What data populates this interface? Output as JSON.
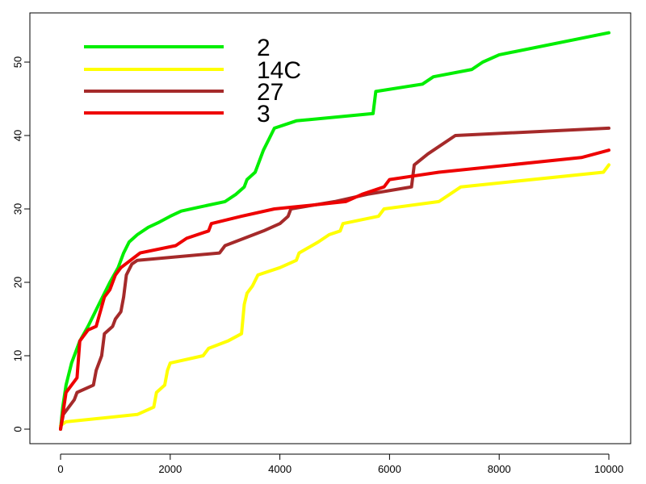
{
  "chart_data": {
    "type": "line",
    "title": "",
    "xlabel": "",
    "ylabel": "",
    "xlim": [
      0,
      10000
    ],
    "ylim": [
      0,
      54
    ],
    "x_ticks": [
      0,
      2000,
      4000,
      6000,
      8000,
      10000
    ],
    "y_ticks": [
      0,
      10,
      20,
      30,
      40,
      50
    ],
    "x_tick_labels": [
      "0",
      "2000",
      "4000",
      "6000",
      "8000",
      "10000"
    ],
    "y_tick_labels": [
      "0",
      "10",
      "20",
      "30",
      "40",
      "50"
    ],
    "grid": false,
    "legend_position": "top-left",
    "series": [
      {
        "name": "2",
        "color": "#00ee00",
        "points": [
          [
            0,
            0
          ],
          [
            40,
            3
          ],
          [
            100,
            6
          ],
          [
            200,
            9
          ],
          [
            350,
            12
          ],
          [
            500,
            14
          ],
          [
            700,
            17
          ],
          [
            900,
            20
          ],
          [
            1050,
            22
          ],
          [
            1150,
            24
          ],
          [
            1250,
            25.5
          ],
          [
            1400,
            26.5
          ],
          [
            1600,
            27.5
          ],
          [
            1800,
            28.2
          ],
          [
            2000,
            29
          ],
          [
            2200,
            29.7
          ],
          [
            2500,
            30.2
          ],
          [
            3000,
            31
          ],
          [
            3200,
            32
          ],
          [
            3350,
            33
          ],
          [
            3400,
            34
          ],
          [
            3550,
            35
          ],
          [
            3600,
            36
          ],
          [
            3700,
            38
          ],
          [
            3800,
            39.5
          ],
          [
            3900,
            41
          ],
          [
            4300,
            42
          ],
          [
            5700,
            43
          ],
          [
            5750,
            46
          ],
          [
            6600,
            47
          ],
          [
            6800,
            48
          ],
          [
            7500,
            49
          ],
          [
            7700,
            50
          ],
          [
            8000,
            51
          ],
          [
            10000,
            54
          ]
        ]
      },
      {
        "name": "14C",
        "color": "#ffff00",
        "points": [
          [
            0,
            0.5
          ],
          [
            100,
            1
          ],
          [
            1400,
            2
          ],
          [
            1700,
            3
          ],
          [
            1750,
            5
          ],
          [
            1900,
            6
          ],
          [
            1950,
            8
          ],
          [
            2000,
            9
          ],
          [
            2600,
            10
          ],
          [
            2700,
            11
          ],
          [
            3050,
            12
          ],
          [
            3300,
            13
          ],
          [
            3350,
            17
          ],
          [
            3400,
            18.5
          ],
          [
            3500,
            19.5
          ],
          [
            3600,
            21
          ],
          [
            4000,
            22
          ],
          [
            4300,
            23
          ],
          [
            4350,
            24
          ],
          [
            4700,
            25.5
          ],
          [
            4900,
            26.5
          ],
          [
            5100,
            27
          ],
          [
            5150,
            28
          ],
          [
            5800,
            29
          ],
          [
            5900,
            30
          ],
          [
            6900,
            31
          ],
          [
            7100,
            32
          ],
          [
            7300,
            33
          ],
          [
            9900,
            35
          ],
          [
            10000,
            36
          ]
        ]
      },
      {
        "name": "27",
        "color": "#a52a2a",
        "points": [
          [
            0,
            0
          ],
          [
            50,
            2
          ],
          [
            150,
            3
          ],
          [
            250,
            4
          ],
          [
            300,
            5
          ],
          [
            600,
            6
          ],
          [
            650,
            8
          ],
          [
            750,
            10
          ],
          [
            800,
            13
          ],
          [
            950,
            14
          ],
          [
            1000,
            15
          ],
          [
            1100,
            16
          ],
          [
            1150,
            18
          ],
          [
            1200,
            21
          ],
          [
            1300,
            22.5
          ],
          [
            1400,
            23
          ],
          [
            2900,
            24
          ],
          [
            3000,
            25
          ],
          [
            3700,
            27
          ],
          [
            4000,
            28
          ],
          [
            4150,
            29
          ],
          [
            4200,
            30
          ],
          [
            5000,
            31
          ],
          [
            5600,
            32
          ],
          [
            6400,
            33
          ],
          [
            6450,
            36
          ],
          [
            6700,
            37.5
          ],
          [
            6900,
            38.5
          ],
          [
            7200,
            40
          ],
          [
            10000,
            41
          ]
        ]
      },
      {
        "name": "3",
        "color": "#ee0000",
        "points": [
          [
            0,
            0
          ],
          [
            40,
            2
          ],
          [
            100,
            5
          ],
          [
            200,
            6
          ],
          [
            300,
            7
          ],
          [
            350,
            12
          ],
          [
            500,
            13.5
          ],
          [
            650,
            14
          ],
          [
            800,
            18
          ],
          [
            900,
            19
          ],
          [
            1000,
            21
          ],
          [
            1100,
            22
          ],
          [
            1450,
            24
          ],
          [
            2100,
            25
          ],
          [
            2300,
            26
          ],
          [
            2700,
            27
          ],
          [
            2750,
            28
          ],
          [
            3300,
            29
          ],
          [
            3900,
            30
          ],
          [
            4300,
            30.3
          ],
          [
            5200,
            31
          ],
          [
            5500,
            32
          ],
          [
            5900,
            33
          ],
          [
            6000,
            34
          ],
          [
            6900,
            35
          ],
          [
            9500,
            37
          ],
          [
            10000,
            38
          ]
        ]
      }
    ]
  }
}
